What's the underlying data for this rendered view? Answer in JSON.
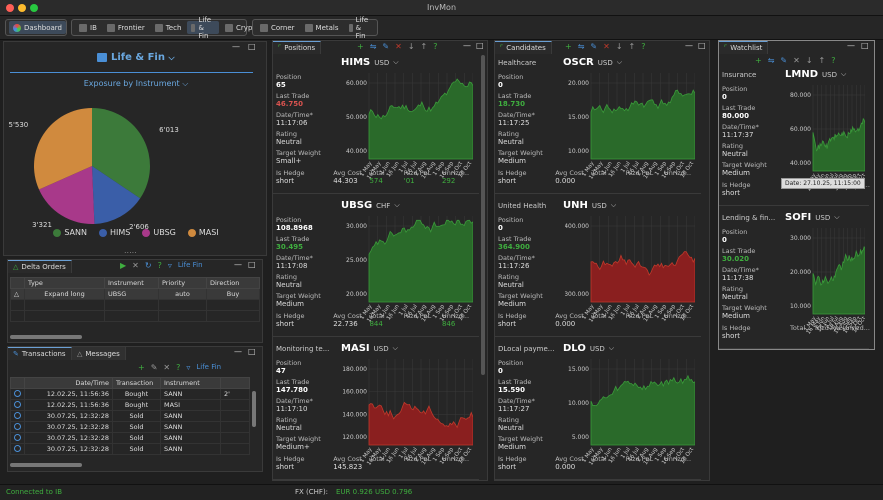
{
  "window": {
    "title": "InvMon"
  },
  "toolbar": {
    "group1": [
      {
        "label": "Dashboard",
        "selected": true
      }
    ],
    "group2": [
      {
        "label": "IB"
      },
      {
        "label": "Frontier"
      },
      {
        "label": "Tech"
      },
      {
        "label": "Life & Fin",
        "selected": true
      },
      {
        "label": "Crypto"
      }
    ],
    "group3": [
      {
        "label": "Corner"
      },
      {
        "label": "Metals"
      },
      {
        "label": "Life & Fin"
      }
    ]
  },
  "left": {
    "title": "Life & Fin",
    "exposure_label": "Exposure by Instrument",
    "pie": {
      "slices": [
        {
          "name": "SANN",
          "value": 6013,
          "label": "6'013",
          "color": "#3c7a3a"
        },
        {
          "name": "HIMS",
          "value": 2606,
          "label": "2'606",
          "color": "#3a5ea8"
        },
        {
          "name": "UBSG",
          "value": 3321,
          "label": "3'321",
          "color": "#a8398a"
        },
        {
          "name": "MASI",
          "value": 5530,
          "label": "5'530",
          "color": "#d08a3e"
        }
      ]
    },
    "delta_orders": {
      "tab": "Delta Orders",
      "filter": "Life Fin",
      "columns": [
        "Type",
        "Instrument",
        "Priority",
        "Direction"
      ],
      "rows": [
        {
          "type": "Expand long",
          "instrument": "UBSG",
          "priority": "auto",
          "direction": "Buy"
        }
      ]
    },
    "transactions": {
      "tab": "Transactions",
      "tab2": "Messages",
      "filter": "Life Fin",
      "columns": [
        "Date/Time",
        "Transaction",
        "Instrument"
      ],
      "rows": [
        {
          "datetime": "12.02.25, 11:56:36",
          "tx": "Bought",
          "inst": "SANN",
          "extra": "2'"
        },
        {
          "datetime": "12.02.25, 11:56:36",
          "tx": "Bought",
          "inst": "MASI",
          "extra": ""
        },
        {
          "datetime": "30.07.25, 12:32:28",
          "tx": "Sold",
          "inst": "SANN",
          "extra": ""
        },
        {
          "datetime": "30.07.25, 12:32:28",
          "tx": "Sold",
          "inst": "SANN",
          "extra": ""
        },
        {
          "datetime": "30.07.25, 12:32:28",
          "tx": "Sold",
          "inst": "SANN",
          "extra": ""
        },
        {
          "datetime": "30.07.25, 12:32:28",
          "tx": "Sold",
          "inst": "SANN",
          "extra": ""
        }
      ]
    }
  },
  "labels": {
    "position": "Position",
    "last_trade": "Last Trade",
    "datetime": "Date/Time*",
    "rating": "Rating",
    "target_weight": "Target Weight",
    "is_hedge": "Is Hedge",
    "avg_cost": "Avg Cost",
    "total": "Total ...",
    "rlzd": "Rlzd PnL",
    "unrlzd": "Unrlzd..."
  },
  "positions": {
    "tab": "Positions",
    "cards": [
      {
        "name": "",
        "symbol": "HIMS",
        "currency": "USD",
        "position": "65",
        "last": "46.750",
        "last_color": "red",
        "time": "11:17:06",
        "rating": "Neutral",
        "target": "Small+",
        "hedge": "short",
        "avg": "44.303",
        "total": "574",
        "rlzd": "'01",
        "unrlzd": "292",
        "yticks": [
          "60.000",
          "50.000",
          "40.000"
        ],
        "color": "green"
      },
      {
        "name": "",
        "symbol": "UBSG",
        "currency": "CHF",
        "position": "108.8968",
        "last": "30.495",
        "last_color": "green",
        "time": "11:17:08",
        "rating": "Neutral",
        "target": "Medium",
        "hedge": "short",
        "avg": "22.736",
        "total": "844",
        "rlzd": "",
        "unrlzd": "846",
        "yticks": [
          "30.000",
          "25.000",
          "20.000"
        ],
        "color": "green"
      },
      {
        "name": "Monitoring te...",
        "symbol": "MASI",
        "currency": "USD",
        "position": "47",
        "last": "147.780",
        "last_color": "white",
        "time": "11:17:10",
        "rating": "Neutral",
        "target": "Medium+",
        "hedge": "short",
        "avg": "145.823",
        "total": "",
        "rlzd": "",
        "unrlzd": "",
        "yticks": [
          "180.000",
          "160.000",
          "140.000",
          "120.000"
        ],
        "color": "red"
      }
    ]
  },
  "candidates": {
    "tab": "Candidates",
    "cards": [
      {
        "name": "Healthcare",
        "symbol": "OSCR",
        "currency": "USD",
        "position": "0",
        "last": "18.730",
        "last_color": "green",
        "time": "11:17:25",
        "rating": "Neutral",
        "target": "Medium",
        "hedge": "short",
        "avg": "0.000",
        "yticks": [
          "20.000",
          "15.000",
          "10.000"
        ],
        "color": "green"
      },
      {
        "name": "United Health",
        "symbol": "UNH",
        "currency": "USD",
        "position": "0",
        "last": "364.900",
        "last_color": "green",
        "time": "11:17:26",
        "rating": "Neutral",
        "target": "Medium",
        "hedge": "short",
        "avg": "0.000",
        "yticks": [
          "400.000",
          "300.000"
        ],
        "color": "red"
      },
      {
        "name": "DLocal payme...",
        "symbol": "DLO",
        "currency": "USD",
        "position": "0",
        "last": "15.590",
        "last_color": "white",
        "time": "11:17:27",
        "rating": "Neutral",
        "target": "Medium",
        "hedge": "short",
        "avg": "0.000",
        "yticks": [
          "15.000",
          "10.000",
          "5.000"
        ],
        "color": "green"
      }
    ]
  },
  "watchlist": {
    "tab": "Watchlist",
    "tooltip": "Date: 27.10.25, 11:15:00",
    "cards": [
      {
        "name": "Insurance",
        "symbol": "LMND",
        "currency": "USD",
        "position": "0",
        "last": "80.000",
        "last_color": "white",
        "time": "11:17:37",
        "rating": "Neutral",
        "target": "Medium",
        "hedge": "short",
        "avg": "0.000",
        "yticks": [
          "80.000",
          "60.000",
          "40.000"
        ],
        "color": "green"
      },
      {
        "name": "Lending & fin...",
        "symbol": "SOFI",
        "currency": "USD",
        "position": "0",
        "last": "30.020",
        "last_color": "green",
        "time": "11:17:38",
        "rating": "Neutral",
        "target": "Medium",
        "hedge": "short",
        "avg": "0.000",
        "yticks": [
          "30.000",
          "20.000",
          "10.000"
        ],
        "color": "green"
      }
    ]
  },
  "months": [
    "1 May",
    "16 May",
    "1 Jun",
    "16 Jun",
    "1 Jul",
    "16 Jul",
    "1 Aug",
    "16 Aug",
    "1 Sep",
    "16 Sep",
    "1 Oct",
    "16 Oct"
  ],
  "status": {
    "left": "Connected to IB",
    "fx_label": "FX (CHF):",
    "fx1": "EUR 0.926",
    "fx2": "USD 0.796"
  }
}
